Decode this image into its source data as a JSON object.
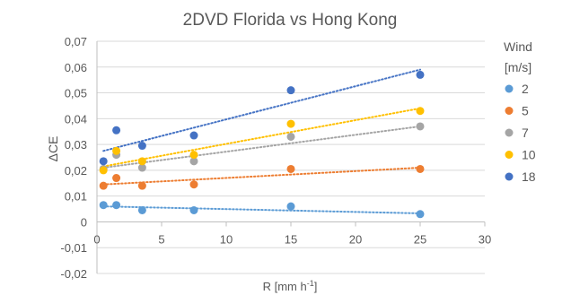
{
  "chart_data": {
    "type": "scatter",
    "title": "2DVD Florida vs Hong Kong",
    "xlabel": "R [mm h",
    "xlabel_sup": "-1",
    "xlabel_end": "]",
    "ylabel": "ΔCE",
    "xlim": [
      0,
      30
    ],
    "ylim": [
      -0.02,
      0.07
    ],
    "x_ticks": [
      0,
      5,
      10,
      15,
      20,
      25,
      30
    ],
    "y_ticks": [
      -0.02,
      -0.01,
      0,
      0.01,
      0.02,
      0.03,
      0.04,
      0.05,
      0.06,
      0.07
    ],
    "x_tick_labels": [
      "0",
      "5",
      "10",
      "15",
      "20",
      "25",
      "30"
    ],
    "y_tick_labels": [
      "-0,02",
      "-0,01",
      "0",
      "0,01",
      "0,02",
      "0,03",
      "0,04",
      "0,05",
      "0,06",
      "0,07"
    ],
    "grid": "horizontal",
    "trendlines": "linear, dotted",
    "legend": {
      "title_line1": "Wind",
      "title_line2": "[m/s]",
      "position": "right"
    },
    "series": [
      {
        "name": "2",
        "color": "#5B9BD5",
        "x": [
          0.5,
          1.5,
          3.5,
          7.5,
          15,
          25
        ],
        "y": [
          0.0065,
          0.0065,
          0.0045,
          0.0045,
          0.006,
          0.003
        ],
        "trend": [
          0.006,
          0.0033
        ]
      },
      {
        "name": "5",
        "color": "#ED7D31",
        "x": [
          0.5,
          1.5,
          3.5,
          7.5,
          15,
          25
        ],
        "y": [
          0.014,
          0.017,
          0.014,
          0.0145,
          0.0205,
          0.0205
        ],
        "trend": [
          0.0145,
          0.021
        ]
      },
      {
        "name": "7",
        "color": "#A5A5A5",
        "x": [
          0.5,
          1.5,
          3.5,
          7.5,
          15,
          25
        ],
        "y": [
          0.0205,
          0.026,
          0.021,
          0.0235,
          0.033,
          0.037
        ],
        "trend": [
          0.021,
          0.037
        ]
      },
      {
        "name": "10",
        "color": "#FFC000",
        "x": [
          0.5,
          1.5,
          3.5,
          7.5,
          15,
          25
        ],
        "y": [
          0.02,
          0.0275,
          0.0235,
          0.026,
          0.038,
          0.043
        ],
        "trend": [
          0.0215,
          0.044
        ]
      },
      {
        "name": "18",
        "color": "#4472C4",
        "x": [
          0.5,
          1.5,
          3.5,
          7.5,
          15,
          25
        ],
        "y": [
          0.0235,
          0.0355,
          0.0295,
          0.0335,
          0.051,
          0.057
        ],
        "trend": [
          0.0275,
          0.059
        ]
      }
    ]
  }
}
